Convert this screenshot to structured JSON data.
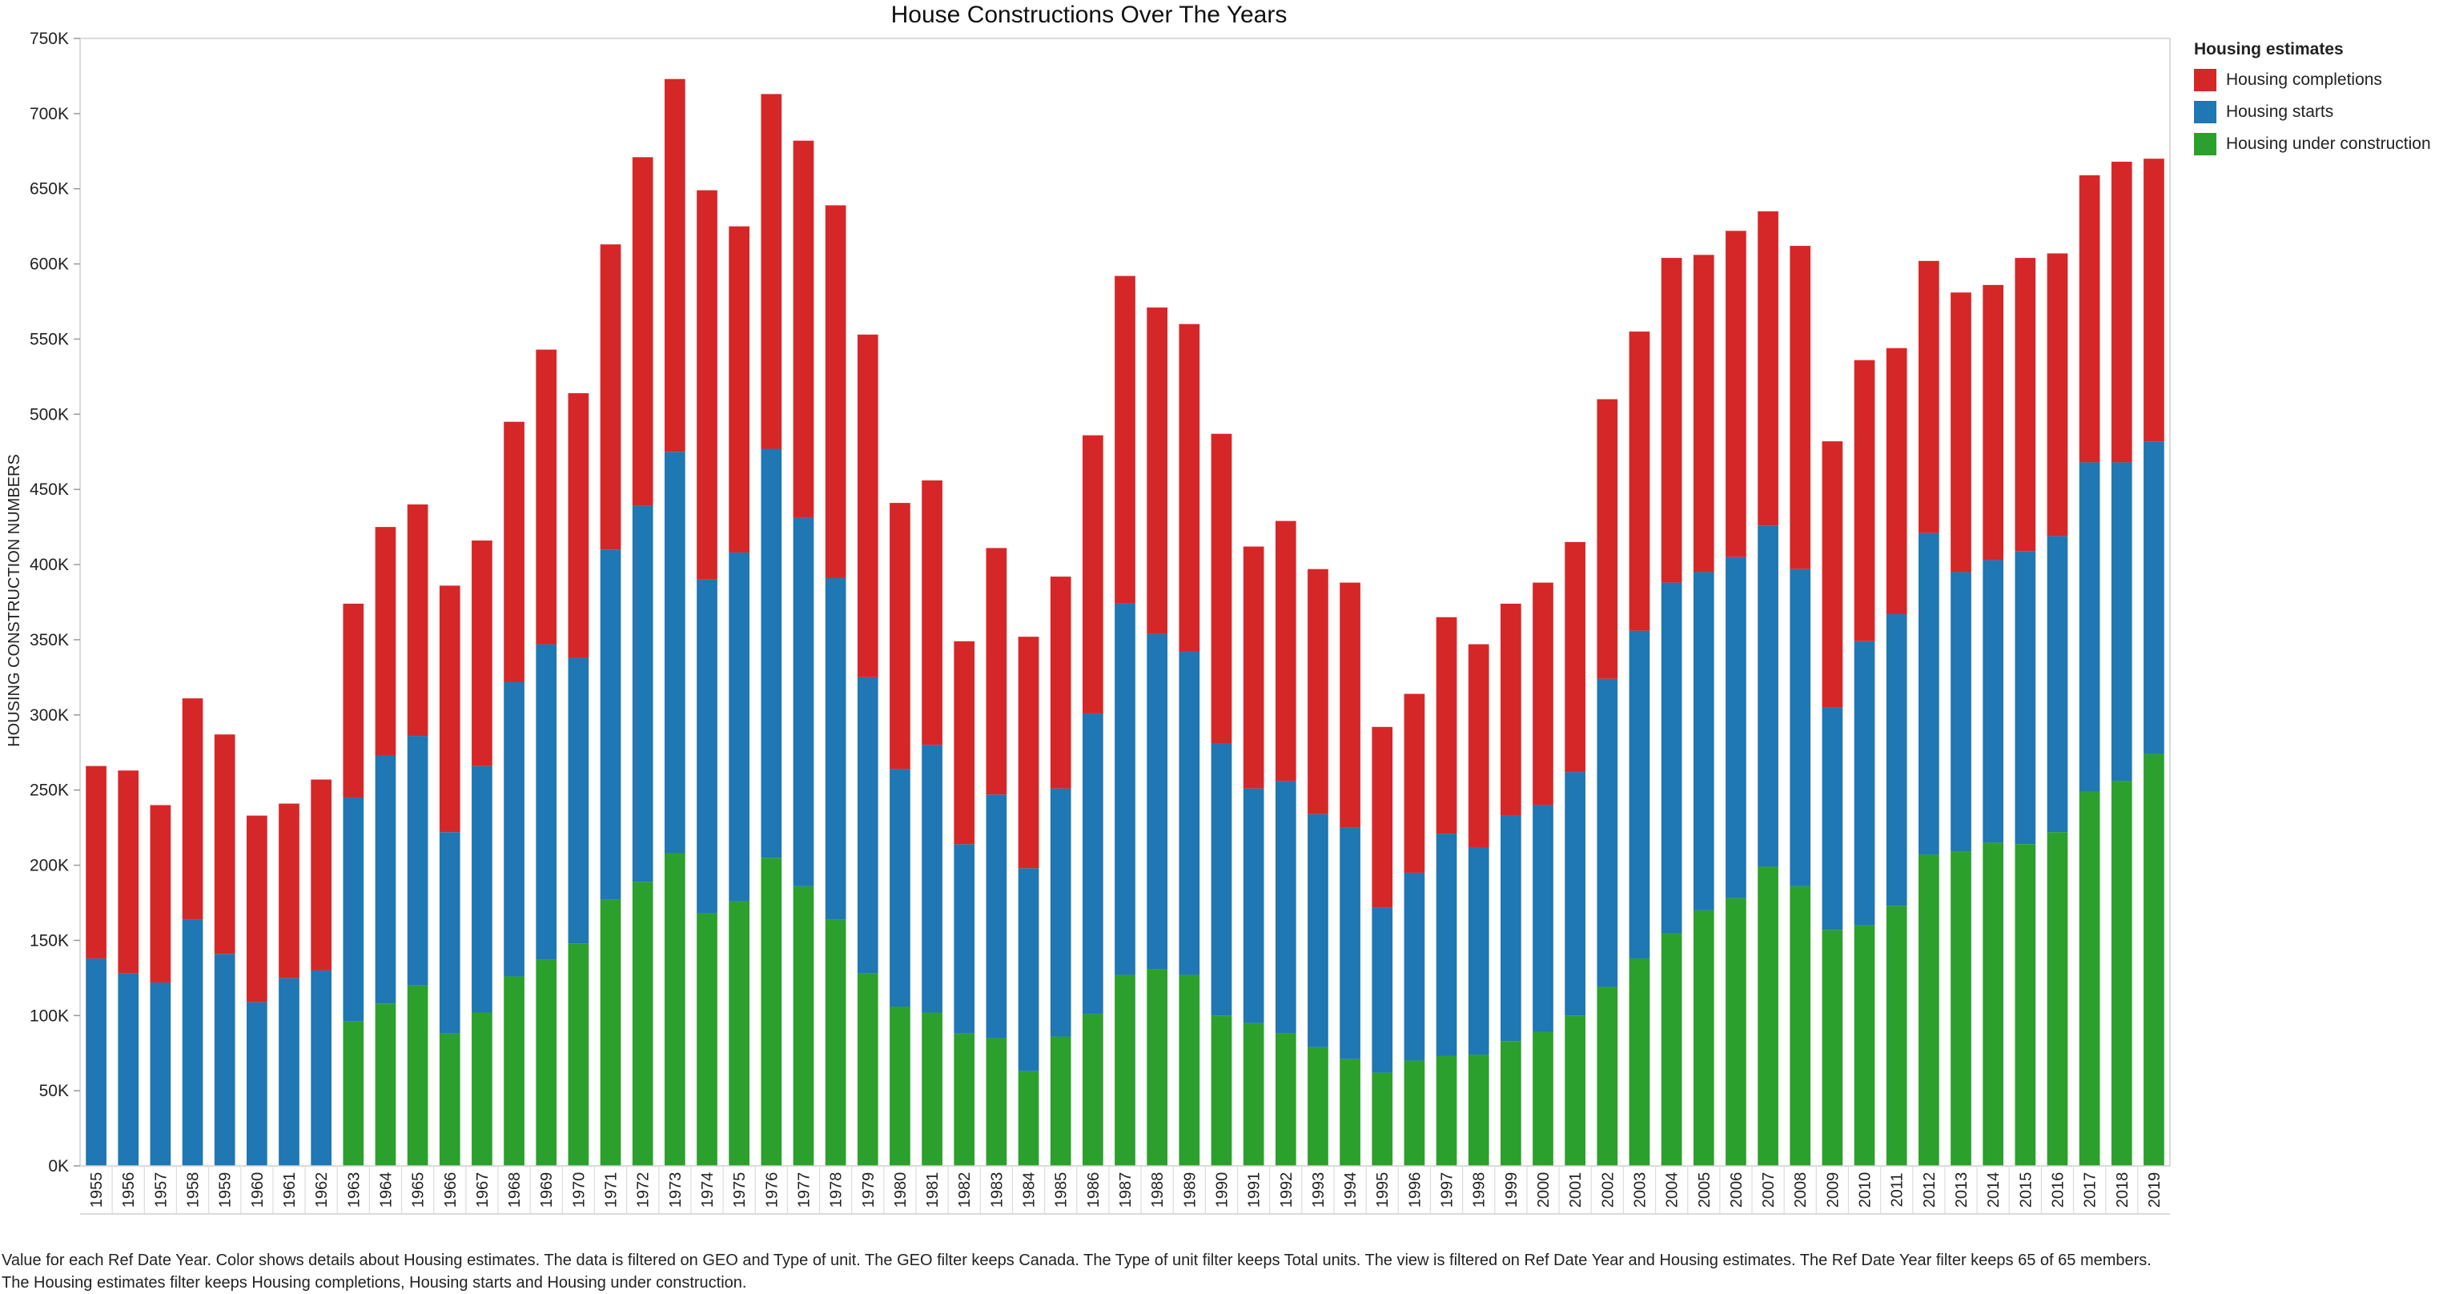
{
  "chart_data": {
    "type": "bar",
    "stacked": true,
    "title": "House Constructions Over The Years",
    "xlabel": "",
    "ylabel": "HOUSING CONSTRUCTION NUMBERS",
    "ylim": [
      0,
      750000
    ],
    "yticks": [
      "0K",
      "50K",
      "100K",
      "150K",
      "200K",
      "250K",
      "300K",
      "350K",
      "400K",
      "450K",
      "500K",
      "550K",
      "600K",
      "650K",
      "700K",
      "750K"
    ],
    "grid": false,
    "legend_placement": "right",
    "legend_title": "Housing estimates",
    "categories": [
      "1955",
      "1956",
      "1957",
      "1958",
      "1959",
      "1960",
      "1961",
      "1962",
      "1963",
      "1964",
      "1965",
      "1966",
      "1967",
      "1968",
      "1969",
      "1970",
      "1971",
      "1972",
      "1973",
      "1974",
      "1975",
      "1976",
      "1977",
      "1978",
      "1979",
      "1980",
      "1981",
      "1982",
      "1983",
      "1984",
      "1985",
      "1986",
      "1987",
      "1988",
      "1989",
      "1990",
      "1991",
      "1992",
      "1993",
      "1994",
      "1995",
      "1996",
      "1997",
      "1998",
      "1999",
      "2000",
      "2001",
      "2002",
      "2003",
      "2004",
      "2005",
      "2006",
      "2007",
      "2008",
      "2009",
      "2010",
      "2011",
      "2012",
      "2013",
      "2014",
      "2015",
      "2016",
      "2017",
      "2018",
      "2019"
    ],
    "series": [
      {
        "name": "Housing under construction",
        "color": "#2ca02c",
        "values": [
          0,
          0,
          0,
          0,
          0,
          0,
          0,
          0,
          96000,
          108000,
          120000,
          88000,
          102000,
          126000,
          137000,
          148000,
          177000,
          189000,
          208000,
          168000,
          176000,
          205000,
          186000,
          164000,
          128000,
          106000,
          102000,
          88000,
          85000,
          63000,
          86000,
          101000,
          127000,
          131000,
          127000,
          100000,
          95000,
          88000,
          79000,
          71000,
          62000,
          70000,
          73000,
          74000,
          83000,
          89000,
          100000,
          119000,
          138000,
          155000,
          170000,
          178000,
          199000,
          186000,
          157000,
          160000,
          173000,
          207000,
          209000,
          215000,
          214000,
          222000,
          249000,
          256000,
          274000
        ]
      },
      {
        "name": "Housing starts",
        "color": "#1f77b4",
        "values": [
          138000,
          128000,
          122000,
          164000,
          141000,
          109000,
          125000,
          130000,
          149000,
          165000,
          166000,
          134000,
          164000,
          196000,
          210000,
          190000,
          233000,
          250000,
          267000,
          222000,
          232000,
          272000,
          245000,
          227000,
          197000,
          158000,
          178000,
          126000,
          162000,
          135000,
          165000,
          200000,
          247000,
          223000,
          215000,
          181000,
          156000,
          168000,
          155000,
          154000,
          110000,
          125000,
          148000,
          138000,
          150000,
          151000,
          162000,
          205000,
          218000,
          233000,
          225000,
          227000,
          227000,
          211000,
          148000,
          189000,
          194000,
          214000,
          186000,
          188000,
          195000,
          197000,
          219000,
          212000,
          208000
        ]
      },
      {
        "name": "Housing completions",
        "color": "#d62728",
        "values": [
          128000,
          135000,
          118000,
          147000,
          146000,
          124000,
          116000,
          127000,
          129000,
          152000,
          154000,
          164000,
          150000,
          173000,
          196000,
          176000,
          203000,
          232000,
          248000,
          259000,
          217000,
          236000,
          251000,
          248000,
          228000,
          177000,
          176000,
          135000,
          164000,
          154000,
          141000,
          185000,
          218000,
          217000,
          218000,
          206000,
          161000,
          173000,
          163000,
          163000,
          120000,
          119000,
          144000,
          135000,
          141000,
          148000,
          153000,
          186000,
          199000,
          216000,
          211000,
          217000,
          209000,
          215000,
          177000,
          187000,
          177000,
          181000,
          186000,
          183000,
          195000,
          188000,
          191000,
          200000,
          188000
        ]
      }
    ]
  },
  "legend": {
    "title": "Housing estimates",
    "items": [
      {
        "label": "Housing completions",
        "color": "#d62728"
      },
      {
        "label": "Housing starts",
        "color": "#1f77b4"
      },
      {
        "label": "Housing under construction",
        "color": "#2ca02c"
      }
    ]
  },
  "footnote": "Value for each Ref Date Year.  Color shows details about Housing estimates. The data is filtered on GEO and Type of unit. The GEO filter keeps Canada. The Type of unit filter keeps Total units. The view is filtered on Ref Date Year and Housing estimates. The Ref Date Year filter keeps 65 of 65 members. The Housing estimates filter keeps Housing completions, Housing starts and Housing under construction."
}
